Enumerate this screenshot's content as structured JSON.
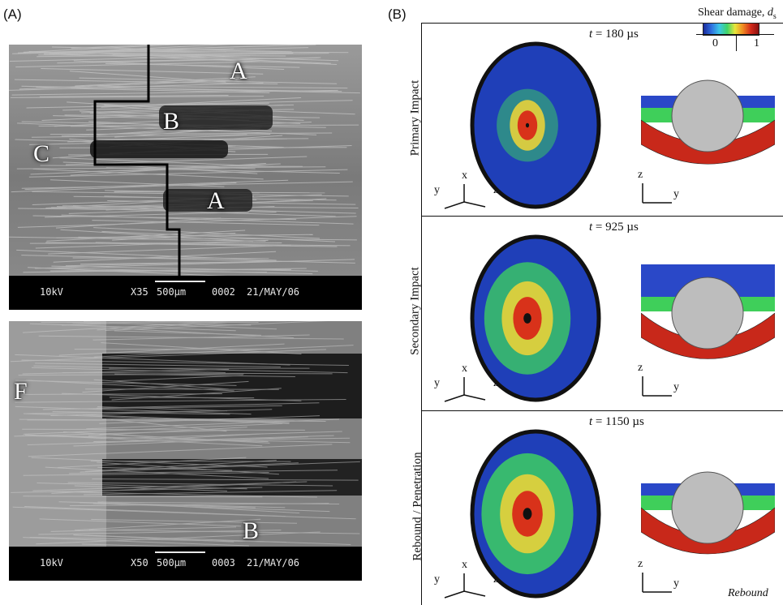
{
  "panel_a": {
    "label": "(A)",
    "top_image": {
      "letters": [
        "A",
        "B",
        "C",
        "A"
      ],
      "footer": [
        "10kV",
        "X35",
        "500µm",
        "0002",
        "21/MAY/06"
      ]
    },
    "bottom_image": {
      "letters": [
        "F",
        "B"
      ],
      "footer": [
        "10kV",
        "X50",
        "500µm",
        "0003",
        "21/MAY/06"
      ]
    }
  },
  "panel_b": {
    "label": "(B)",
    "colorbar": {
      "title": "Shear damage, ",
      "symbol": "d",
      "subscript": "s",
      "min": "0",
      "max": "1"
    },
    "rows": [
      {
        "label": "Primary Impact",
        "time_var": "t",
        "time_text": " = 180 µs",
        "damage_scale": 0.35
      },
      {
        "label": "Secondary Impact",
        "time_var": "t",
        "time_text": " = 925 µs",
        "damage_scale": 0.8
      },
      {
        "label": "Rebound / Penetration",
        "time_var": "t",
        "time_text": " = 1150 µs",
        "damage_scale": 0.9
      }
    ],
    "axes_left": {
      "x": "x",
      "y": "y",
      "z": "z"
    },
    "axes_right": {
      "z": "z",
      "y": "y"
    },
    "caption_rebound": "Rebound"
  }
}
